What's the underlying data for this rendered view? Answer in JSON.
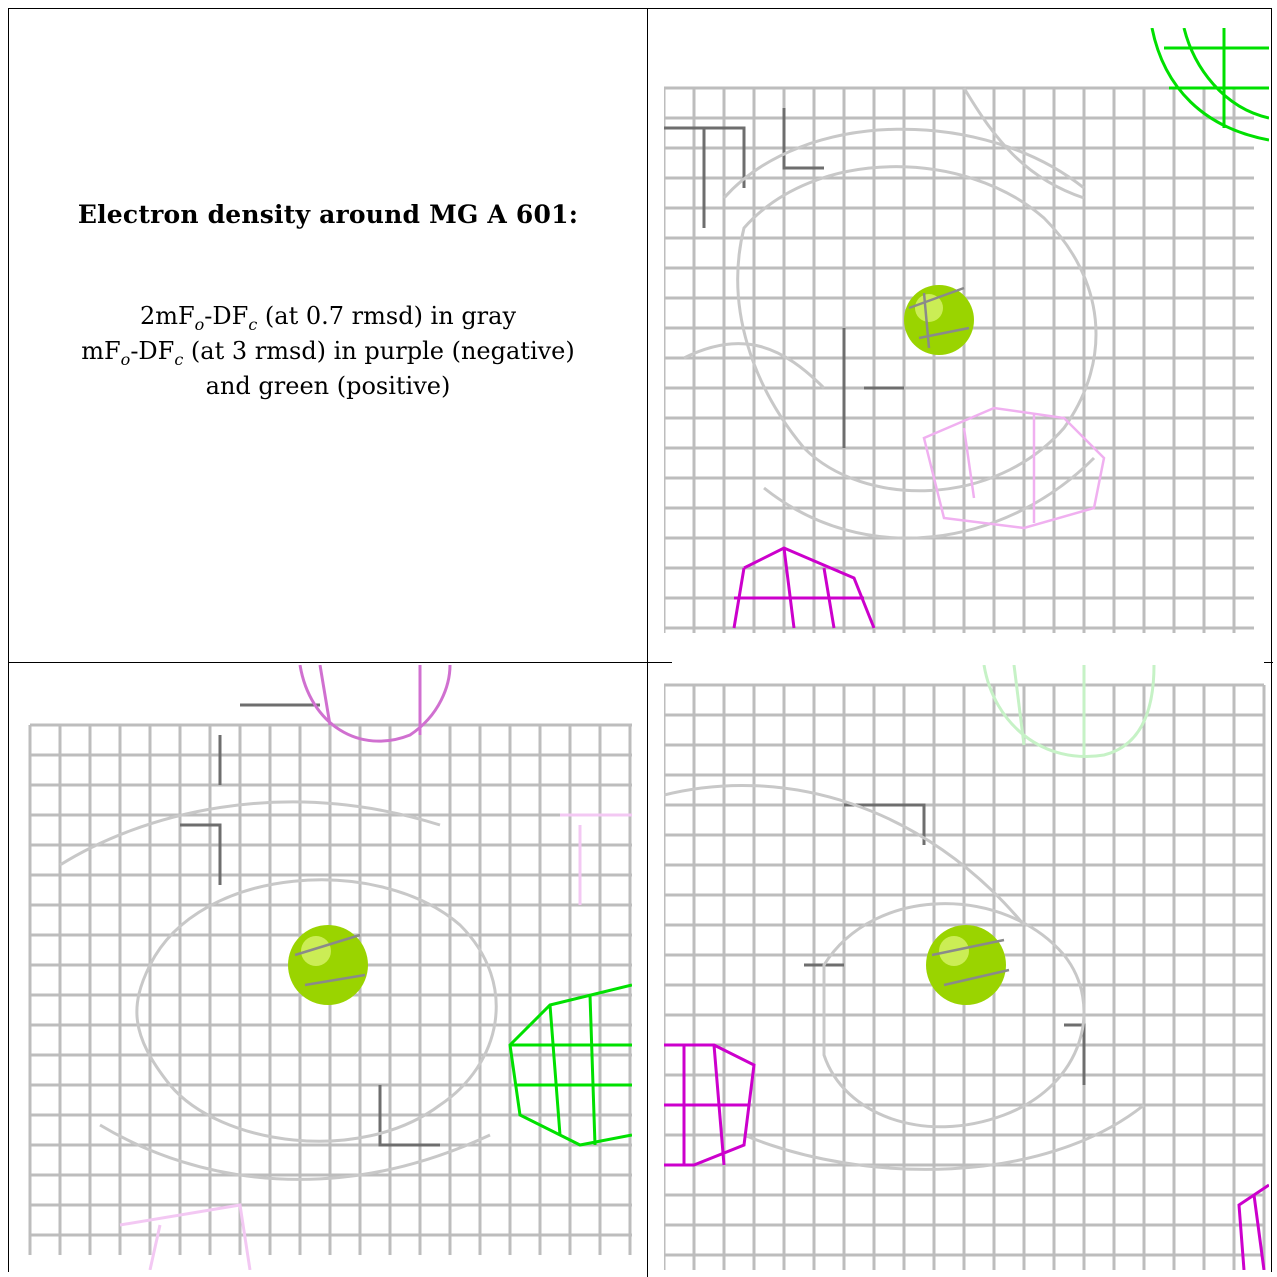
{
  "caption": {
    "title": "Electron density around MG A 601:",
    "line1_a": "2mF",
    "line1_sub_o": "o",
    "line1_b": "-DF",
    "line1_sub_c": "c",
    "line1_c": " (at 0.7 rmsd) in gray",
    "line2_a": "mF",
    "line2_sub_o": "o",
    "line2_b": "-DF",
    "line2_sub_c": "c",
    "line2_c": " (at 3 rmsd) in purple (negative)",
    "line3": "and green (positive)"
  },
  "colors": {
    "map_2fofc": "#b8b8b8",
    "map_2fofc_dark": "#707070",
    "map_fofc_negative": "#cc00cc",
    "map_fofc_positive": "#00e000",
    "magnesium": "#9ad400"
  },
  "views": [
    "view-1",
    "view-2",
    "view-3"
  ]
}
